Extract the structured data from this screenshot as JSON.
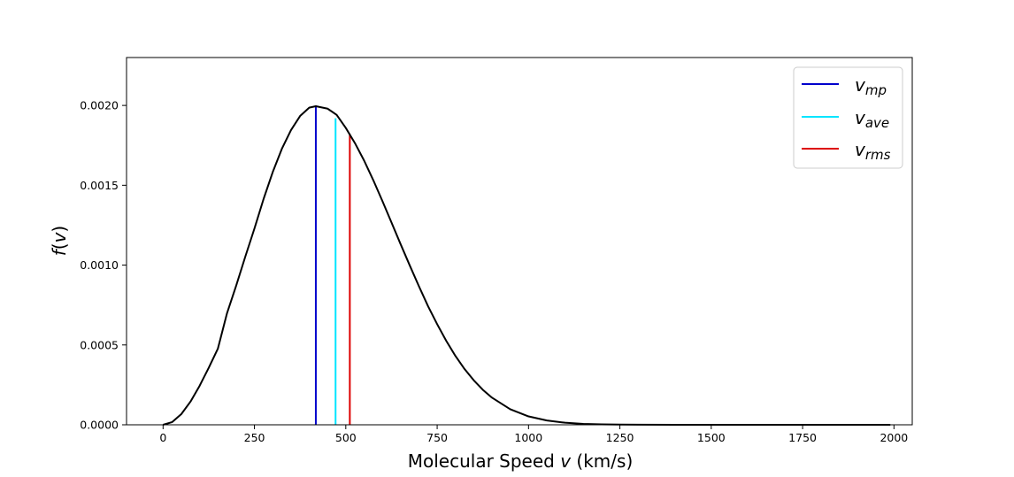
{
  "chart_data": {
    "type": "line",
    "title": "",
    "xlabel": "Molecular Speed v (km/s)",
    "xlabel_parts": [
      "Molecular Speed ",
      "v",
      " (km/s)"
    ],
    "ylabel": "f(v)",
    "ylabel_parts": [
      "f",
      "(",
      "v",
      ")"
    ],
    "xlim": [
      -100,
      2050
    ],
    "ylim": [
      0,
      0.0023
    ],
    "xticks": [
      0,
      250,
      500,
      750,
      1000,
      1250,
      1500,
      1750,
      2000
    ],
    "xtick_labels": [
      "0",
      "250",
      "500",
      "750",
      "1000",
      "1250",
      "1500",
      "1750",
      "2000"
    ],
    "yticks": [
      0,
      0.0005,
      0.001,
      0.0015,
      0.002
    ],
    "ytick_labels": [
      "0.0000",
      "0.0005",
      "0.0010",
      "0.0015",
      "0.0020"
    ],
    "grid": false,
    "legend_position": "top-right",
    "curve": {
      "color": "#000000",
      "x": [
        0,
        25,
        50,
        75,
        100,
        125,
        150,
        175,
        200,
        225,
        250,
        275,
        300,
        325,
        350,
        375,
        400,
        418,
        450,
        475,
        500,
        525,
        550,
        575,
        600,
        625,
        650,
        675,
        700,
        725,
        750,
        775,
        800,
        825,
        850,
        875,
        900,
        950,
        1000,
        1050,
        1100,
        1150,
        1200,
        1250,
        1300,
        1400,
        1500,
        1600,
        1700,
        1800,
        1900,
        1990
      ],
      "y": [
        0,
        1.72e-05,
        6.71e-05,
        0.000145,
        0.000244,
        0.000357,
        0.000477,
        0.000699,
        0.000871,
        0.001053,
        0.001229,
        0.001414,
        0.001582,
        0.001728,
        0.001845,
        0.001934,
        0.001986,
        0.001995,
        0.00198,
        0.001941,
        0.001859,
        0.001764,
        0.001655,
        0.001533,
        0.001402,
        0.001267,
        0.001131,
        0.000998,
        0.000868,
        0.000743,
        0.00063,
        0.000525,
        0.000431,
        0.000349,
        0.000279,
        0.000219,
        0.00017,
        9.75e-05,
        5.25e-05,
        2.68e-05,
        1.3e-05,
        5.9e-06,
        2.6e-06,
        1.1e-06,
        4e-07,
        5e-08,
        0,
        0,
        0,
        0,
        0,
        0
      ]
    },
    "vlines": [
      {
        "name": "v_mp",
        "symbol": "v",
        "subscript": "mp",
        "x": 418,
        "y": 0.001995,
        "color": "#0000cc"
      },
      {
        "name": "v_ave",
        "symbol": "v",
        "subscript": "ave",
        "x": 472,
        "y": 0.00192,
        "color": "#00e5ff"
      },
      {
        "name": "v_rms",
        "symbol": "v",
        "subscript": "rms",
        "x": 511,
        "y": 0.00182,
        "color": "#dd0000"
      }
    ]
  }
}
